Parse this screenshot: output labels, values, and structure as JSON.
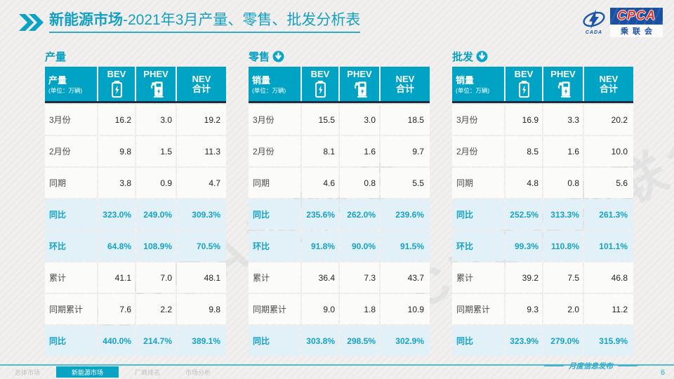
{
  "header": {
    "title_bold": "新能源市场",
    "title_rest": "-2021年3月产量、零售、批发分析表"
  },
  "logo": {
    "swoosh_text": "CADA",
    "cpca": "CPCA",
    "association": "乘联会"
  },
  "watermark": "CPCA乘联会",
  "unit_note": "(单位：万辆)",
  "tables": [
    {
      "id": "production",
      "section_title": "产量",
      "arrow_icon": false,
      "corner_label": "产量",
      "columns": [
        {
          "label": "BEV",
          "icon": "battery-icon"
        },
        {
          "label": "PHEV",
          "icon": "charger-icon"
        },
        {
          "label": "NEV\n合计",
          "icon": ""
        }
      ],
      "rows": [
        {
          "label": "3月份",
          "values": [
            "16.2",
            "3.0",
            "19.2"
          ],
          "pct": false
        },
        {
          "label": "2月份",
          "values": [
            "9.8",
            "1.5",
            "11.3"
          ],
          "pct": false
        },
        {
          "label": "同期",
          "values": [
            "3.8",
            "0.9",
            "4.7"
          ],
          "pct": false
        },
        {
          "label": "同比",
          "values": [
            "323.0%",
            "249.0%",
            "309.3%"
          ],
          "pct": true
        },
        {
          "label": "环比",
          "values": [
            "64.8%",
            "108.9%",
            "70.5%"
          ],
          "pct": true
        },
        {
          "label": "累计",
          "values": [
            "41.1",
            "7.0",
            "48.1"
          ],
          "pct": false
        },
        {
          "label": "同期累计",
          "values": [
            "7.6",
            "2.2",
            "9.8"
          ],
          "pct": false
        },
        {
          "label": "同比",
          "values": [
            "440.0%",
            "214.7%",
            "389.1%"
          ],
          "pct": true
        }
      ]
    },
    {
      "id": "retail",
      "section_title": "零售",
      "arrow_icon": true,
      "corner_label": "销量",
      "columns": [
        {
          "label": "BEV",
          "icon": "battery-icon"
        },
        {
          "label": "PHEV",
          "icon": "charger-icon"
        },
        {
          "label": "NEV\n合计",
          "icon": ""
        }
      ],
      "rows": [
        {
          "label": "3月份",
          "values": [
            "15.5",
            "3.0",
            "18.5"
          ],
          "pct": false
        },
        {
          "label": "2月份",
          "values": [
            "8.1",
            "1.6",
            "9.7"
          ],
          "pct": false
        },
        {
          "label": "同期",
          "values": [
            "4.6",
            "0.8",
            "5.5"
          ],
          "pct": false
        },
        {
          "label": "同比",
          "values": [
            "235.6%",
            "262.0%",
            "239.6%"
          ],
          "pct": true
        },
        {
          "label": "环比",
          "values": [
            "91.8%",
            "90.0%",
            "91.5%"
          ],
          "pct": true
        },
        {
          "label": "累计",
          "values": [
            "36.4",
            "7.3",
            "43.7"
          ],
          "pct": false
        },
        {
          "label": "同期累计",
          "values": [
            "9.0",
            "1.8",
            "10.9"
          ],
          "pct": false
        },
        {
          "label": "同比",
          "values": [
            "303.8%",
            "298.5%",
            "302.9%"
          ],
          "pct": true
        }
      ]
    },
    {
      "id": "wholesale",
      "section_title": "批发",
      "arrow_icon": true,
      "corner_label": "销量",
      "columns": [
        {
          "label": "BEV",
          "icon": "battery-icon"
        },
        {
          "label": "PHEV",
          "icon": "charger-icon"
        },
        {
          "label": "NEV\n合计",
          "icon": ""
        }
      ],
      "rows": [
        {
          "label": "3月份",
          "values": [
            "16.9",
            "3.3",
            "20.2"
          ],
          "pct": false
        },
        {
          "label": "2月份",
          "values": [
            "8.5",
            "1.6",
            "10.0"
          ],
          "pct": false
        },
        {
          "label": "同期",
          "values": [
            "4.8",
            "0.8",
            "5.6"
          ],
          "pct": false
        },
        {
          "label": "同比",
          "values": [
            "252.5%",
            "313.3%",
            "261.3%"
          ],
          "pct": true
        },
        {
          "label": "环比",
          "values": [
            "99.3%",
            "110.8%",
            "101.1%"
          ],
          "pct": true
        },
        {
          "label": "累计",
          "values": [
            "39.2",
            "7.5",
            "46.8"
          ],
          "pct": false
        },
        {
          "label": "同期累计",
          "values": [
            "9.3",
            "2.0",
            "11.2"
          ],
          "pct": false
        },
        {
          "label": "同比",
          "values": [
            "323.9%",
            "279.0%",
            "315.9%"
          ],
          "pct": true
        }
      ]
    }
  ],
  "footer": {
    "note": "月度信息发布",
    "page_number": "6",
    "tabs": [
      {
        "label": "总体市场",
        "active": false
      },
      {
        "label": "新能源市场",
        "active": true
      },
      {
        "label": "厂商排名",
        "active": false
      },
      {
        "label": "市场分析",
        "active": false
      }
    ]
  },
  "colors": {
    "teal_header": "#00A3C4",
    "teal_text": "#14A2C6",
    "highlight_row": "#E2F1F7",
    "dark_rule": "#1E2F42",
    "logo_blue": "#1B4FA0",
    "logo_red": "#E23228"
  }
}
